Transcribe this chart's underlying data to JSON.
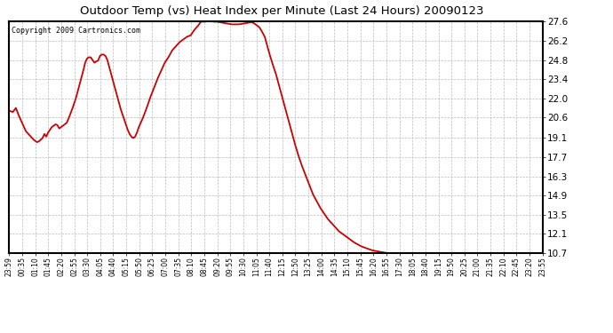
{
  "title": "Outdoor Temp (vs) Heat Index per Minute (Last 24 Hours) 20090123",
  "copyright": "Copyright 2009 Cartronics.com",
  "line_color": "#cc0000",
  "line_width": 1.3,
  "background_color": "#ffffff",
  "grid_color": "#bbbbbb",
  "ylim": [
    10.7,
    27.6
  ],
  "yticks": [
    10.7,
    12.1,
    13.5,
    14.9,
    16.3,
    17.7,
    19.1,
    20.6,
    22.0,
    23.4,
    24.8,
    26.2,
    27.6
  ],
  "xtick_labels": [
    "23:59",
    "00:35",
    "01:10",
    "01:45",
    "02:20",
    "02:55",
    "03:30",
    "04:05",
    "04:40",
    "05:15",
    "05:50",
    "06:25",
    "07:00",
    "07:35",
    "08:10",
    "08:45",
    "09:20",
    "09:55",
    "10:30",
    "11:05",
    "11:40",
    "12:15",
    "12:50",
    "13:25",
    "14:00",
    "14:35",
    "15:10",
    "15:45",
    "16:20",
    "16:55",
    "17:30",
    "18:05",
    "18:40",
    "19:15",
    "19:50",
    "20:25",
    "21:00",
    "21:35",
    "22:10",
    "22:45",
    "23:20",
    "23:55"
  ],
  "key_points": [
    [
      0,
      21.1
    ],
    [
      10,
      21.0
    ],
    [
      18,
      21.3
    ],
    [
      25,
      20.8
    ],
    [
      35,
      20.2
    ],
    [
      45,
      19.6
    ],
    [
      55,
      19.3
    ],
    [
      65,
      19.0
    ],
    [
      75,
      18.8
    ],
    [
      80,
      18.85
    ],
    [
      90,
      19.1
    ],
    [
      95,
      19.4
    ],
    [
      100,
      19.2
    ],
    [
      105,
      19.5
    ],
    [
      110,
      19.7
    ],
    [
      115,
      19.9
    ],
    [
      120,
      20.0
    ],
    [
      125,
      20.1
    ],
    [
      130,
      20.05
    ],
    [
      135,
      19.8
    ],
    [
      140,
      19.9
    ],
    [
      145,
      20.0
    ],
    [
      150,
      20.1
    ],
    [
      155,
      20.2
    ],
    [
      160,
      20.5
    ],
    [
      170,
      21.2
    ],
    [
      180,
      22.0
    ],
    [
      190,
      23.0
    ],
    [
      200,
      24.0
    ],
    [
      205,
      24.6
    ],
    [
      210,
      24.9
    ],
    [
      215,
      25.0
    ],
    [
      220,
      25.0
    ],
    [
      225,
      24.8
    ],
    [
      230,
      24.6
    ],
    [
      235,
      24.7
    ],
    [
      240,
      24.75
    ],
    [
      245,
      25.1
    ],
    [
      250,
      25.2
    ],
    [
      255,
      25.2
    ],
    [
      260,
      25.1
    ],
    [
      265,
      24.8
    ],
    [
      270,
      24.3
    ],
    [
      280,
      23.3
    ],
    [
      290,
      22.3
    ],
    [
      300,
      21.3
    ],
    [
      310,
      20.5
    ],
    [
      315,
      20.1
    ],
    [
      320,
      19.7
    ],
    [
      325,
      19.4
    ],
    [
      330,
      19.2
    ],
    [
      335,
      19.1
    ],
    [
      340,
      19.2
    ],
    [
      345,
      19.5
    ],
    [
      350,
      19.9
    ],
    [
      360,
      20.5
    ],
    [
      370,
      21.2
    ],
    [
      380,
      22.0
    ],
    [
      390,
      22.7
    ],
    [
      400,
      23.4
    ],
    [
      410,
      24.0
    ],
    [
      420,
      24.6
    ],
    [
      430,
      25.0
    ],
    [
      440,
      25.5
    ],
    [
      450,
      25.8
    ],
    [
      460,
      26.1
    ],
    [
      470,
      26.3
    ],
    [
      480,
      26.5
    ],
    [
      490,
      26.6
    ],
    [
      500,
      27.0
    ],
    [
      510,
      27.3
    ],
    [
      515,
      27.5
    ],
    [
      518,
      27.6
    ],
    [
      520,
      27.6
    ],
    [
      525,
      27.6
    ],
    [
      530,
      27.6
    ],
    [
      535,
      27.65
    ],
    [
      540,
      27.65
    ],
    [
      545,
      27.65
    ],
    [
      550,
      27.6
    ],
    [
      560,
      27.6
    ],
    [
      570,
      27.55
    ],
    [
      580,
      27.5
    ],
    [
      590,
      27.45
    ],
    [
      600,
      27.4
    ],
    [
      610,
      27.4
    ],
    [
      620,
      27.4
    ],
    [
      630,
      27.45
    ],
    [
      640,
      27.5
    ],
    [
      650,
      27.55
    ],
    [
      655,
      27.55
    ],
    [
      660,
      27.5
    ],
    [
      665,
      27.4
    ],
    [
      670,
      27.3
    ],
    [
      675,
      27.2
    ],
    [
      680,
      27.0
    ],
    [
      690,
      26.5
    ],
    [
      695,
      26.0
    ],
    [
      700,
      25.5
    ],
    [
      710,
      24.6
    ],
    [
      715,
      24.2
    ],
    [
      720,
      23.8
    ],
    [
      730,
      22.8
    ],
    [
      740,
      21.8
    ],
    [
      750,
      20.8
    ],
    [
      760,
      19.8
    ],
    [
      770,
      18.8
    ],
    [
      780,
      17.9
    ],
    [
      790,
      17.1
    ],
    [
      800,
      16.4
    ],
    [
      810,
      15.7
    ],
    [
      820,
      15.0
    ],
    [
      830,
      14.5
    ],
    [
      840,
      14.0
    ],
    [
      850,
      13.6
    ],
    [
      860,
      13.2
    ],
    [
      870,
      12.9
    ],
    [
      880,
      12.6
    ],
    [
      890,
      12.3
    ],
    [
      900,
      12.1
    ],
    [
      910,
      11.9
    ],
    [
      920,
      11.7
    ],
    [
      930,
      11.5
    ],
    [
      940,
      11.35
    ],
    [
      950,
      11.2
    ],
    [
      960,
      11.1
    ],
    [
      970,
      11.0
    ],
    [
      980,
      10.9
    ],
    [
      990,
      10.85
    ],
    [
      1000,
      10.8
    ],
    [
      1010,
      10.75
    ],
    [
      1020,
      10.7
    ],
    [
      1440,
      10.7
    ]
  ]
}
